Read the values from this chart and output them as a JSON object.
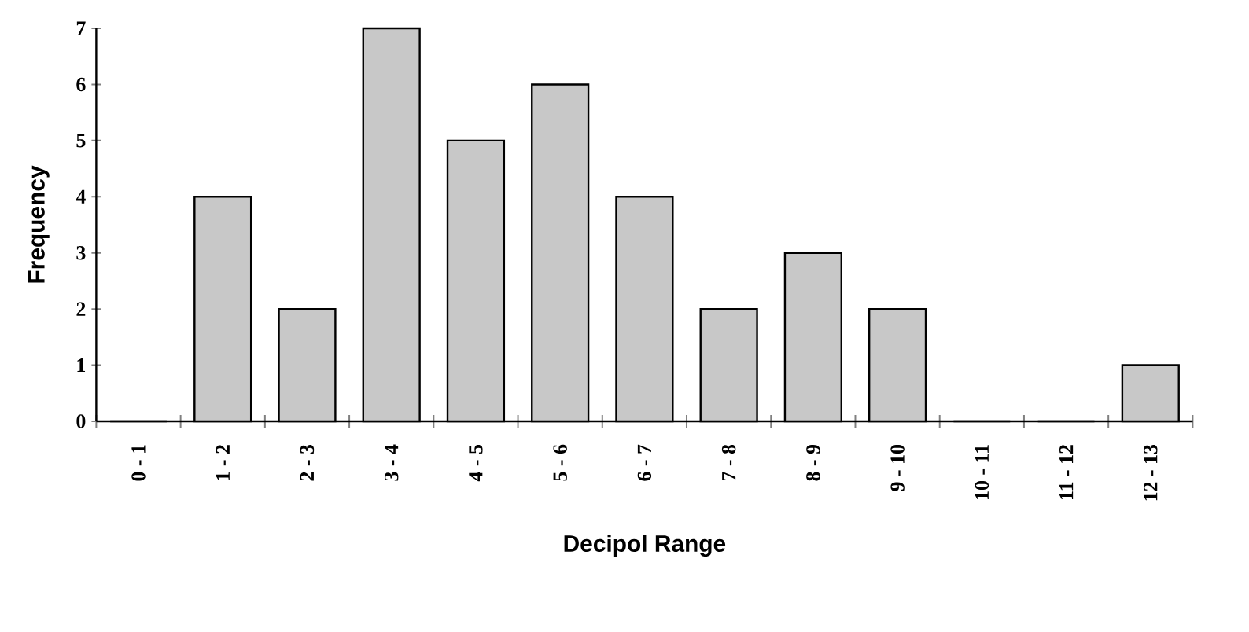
{
  "chart_data": {
    "type": "bar",
    "xlabel": "Decipol Range",
    "ylabel": "Frequency",
    "categories": [
      "0 - 1",
      "1 - 2",
      "2 - 3",
      "3 - 4",
      "4 - 5",
      "5 - 6",
      "6 - 7",
      "7 - 8",
      "8 - 9",
      "9 - 10",
      "10 - 11",
      "11 - 12",
      "12 - 13"
    ],
    "values": [
      0,
      4,
      2,
      7,
      5,
      6,
      4,
      2,
      3,
      2,
      0,
      0,
      1
    ],
    "color": "#c8c8c8",
    "ylim": [
      0,
      7
    ],
    "yticks": [
      0,
      1,
      2,
      3,
      4,
      5,
      6,
      7
    ]
  }
}
